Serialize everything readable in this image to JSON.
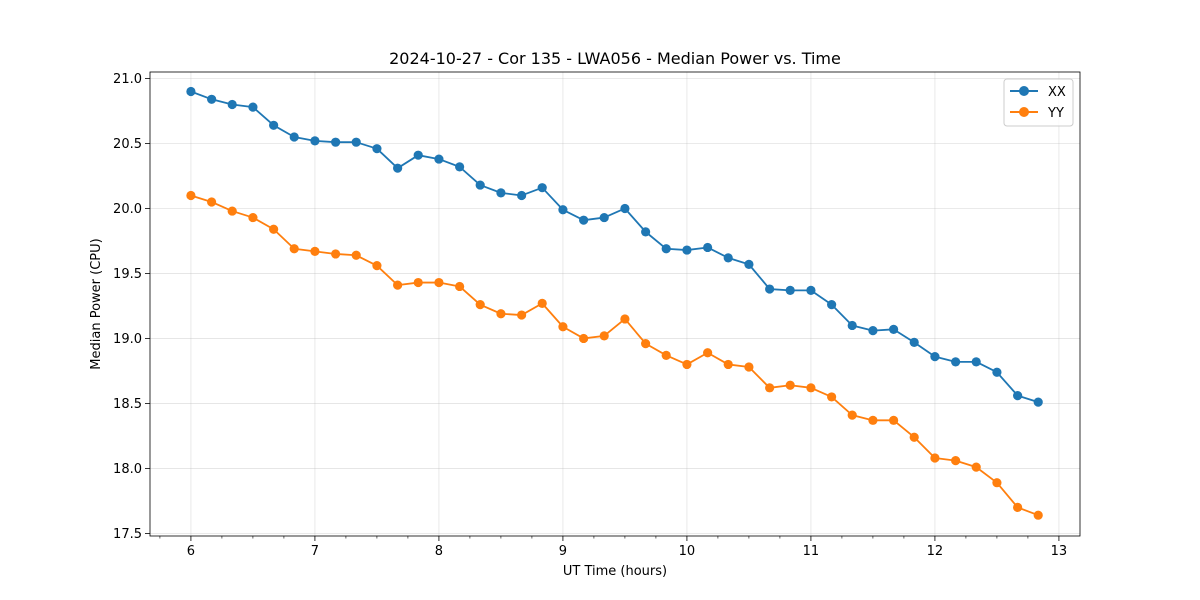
{
  "chart_data": {
    "type": "line",
    "title": "2024-10-27 - Cor 135 - LWA056 - Median Power vs. Time",
    "xlabel": "UT Time (hours)",
    "ylabel": "Median Power (CPU)",
    "xlim": [
      5.67,
      13.17
    ],
    "ylim": [
      17.48,
      21.05
    ],
    "xticks": [
      6,
      7,
      8,
      9,
      10,
      11,
      12,
      13
    ],
    "xtick_labels": [
      "6",
      "7",
      "8",
      "9",
      "10",
      "11",
      "12",
      "13"
    ],
    "yticks": [
      17.5,
      18.0,
      18.5,
      19.0,
      19.5,
      20.0,
      20.5,
      21.0
    ],
    "ytick_labels": [
      "17.5",
      "18.0",
      "18.5",
      "19.0",
      "19.5",
      "20.0",
      "20.5",
      "21.0"
    ],
    "x_minor_step": 0.25,
    "grid": true,
    "legend_position": "top-right",
    "x": [
      6.0,
      6.167,
      6.333,
      6.5,
      6.667,
      6.833,
      7.0,
      7.167,
      7.333,
      7.5,
      7.667,
      7.833,
      8.0,
      8.167,
      8.333,
      8.5,
      8.667,
      8.833,
      9.0,
      9.167,
      9.333,
      9.5,
      9.667,
      9.833,
      10.0,
      10.167,
      10.333,
      10.5,
      10.667,
      10.833,
      11.0,
      11.167,
      11.333,
      11.5,
      11.667,
      11.833,
      12.0,
      12.167,
      12.333,
      12.5,
      12.667,
      12.833
    ],
    "series": [
      {
        "name": "XX",
        "color": "#1f77b4",
        "values": [
          20.9,
          20.84,
          20.8,
          20.78,
          20.64,
          20.55,
          20.52,
          20.51,
          20.51,
          20.46,
          20.31,
          20.41,
          20.38,
          20.32,
          20.18,
          20.12,
          20.1,
          20.16,
          19.99,
          19.91,
          19.93,
          20.0,
          19.82,
          19.69,
          19.68,
          19.7,
          19.62,
          19.57,
          19.38,
          19.37,
          19.37,
          19.26,
          19.1,
          19.06,
          19.07,
          18.97,
          18.86,
          18.82,
          18.82,
          18.74,
          18.56,
          18.51
        ]
      },
      {
        "name": "YY",
        "color": "#ff7f0e",
        "values": [
          20.1,
          20.05,
          19.98,
          19.93,
          19.84,
          19.69,
          19.67,
          19.65,
          19.64,
          19.56,
          19.41,
          19.43,
          19.43,
          19.4,
          19.26,
          19.19,
          19.18,
          19.27,
          19.09,
          19.0,
          19.02,
          19.15,
          18.96,
          18.87,
          18.8,
          18.89,
          18.8,
          18.78,
          18.62,
          18.64,
          18.62,
          18.55,
          18.41,
          18.37,
          18.37,
          18.24,
          18.08,
          18.06,
          18.01,
          17.89,
          17.7,
          17.64
        ]
      }
    ]
  }
}
